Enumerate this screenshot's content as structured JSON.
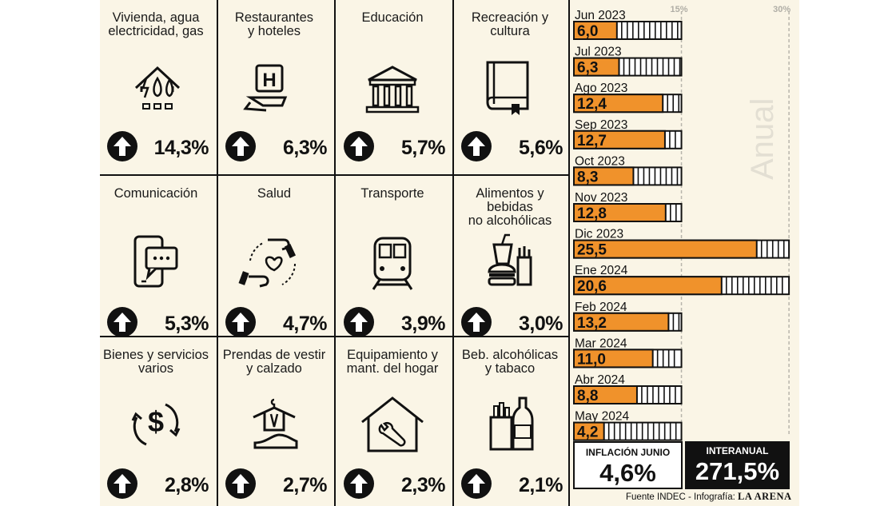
{
  "categories": [
    {
      "title": "Vivienda, agua\nelectricidad, gas",
      "value": "14,3%",
      "icon": "house-utilities-icon"
    },
    {
      "title": "Restaurantes\ny hoteles",
      "value": "6,3%",
      "icon": "hotel-icon"
    },
    {
      "title": "Educación",
      "value": "5,7%",
      "icon": "school-building-icon"
    },
    {
      "title": "Recreación y\ncultura",
      "value": "5,6%",
      "icon": "book-icon"
    },
    {
      "title": "Comunicación",
      "value": "5,3%",
      "icon": "smartphone-chat-icon"
    },
    {
      "title": "Salud",
      "value": "4,7%",
      "icon": "health-hands-heart-icon"
    },
    {
      "title": "Transporte",
      "value": "3,9%",
      "icon": "train-icon"
    },
    {
      "title": "Alimentos y bebidas\nno alcohólicas",
      "value": "3,0%",
      "icon": "food-drink-icon"
    },
    {
      "title": "Bienes y servicios\nvarios",
      "value": "2,8%",
      "icon": "dollar-exchange-icon"
    },
    {
      "title": "Prendas de vestir\ny calzado",
      "value": "2,7%",
      "icon": "clothing-shoe-icon"
    },
    {
      "title": "Equipamiento y\nmant. del hogar",
      "value": "2,3%",
      "icon": "house-wrench-icon"
    },
    {
      "title": "Beb. alcohólicas\ny tabaco",
      "value": "2,1%",
      "icon": "bottle-cigarettes-icon"
    }
  ],
  "chart_data": {
    "type": "bar",
    "orientation": "horizontal",
    "categories": [
      "Jun 2023",
      "Jul 2023",
      "Ago 2023",
      "Sep 2023",
      "Oct 2023",
      "Nov 2023",
      "Dic 2023",
      "Ene 2024",
      "Feb 2024",
      "Mar 2024",
      "Abr 2024",
      "May 2024"
    ],
    "values": [
      6.0,
      6.3,
      12.4,
      12.7,
      8.3,
      12.8,
      25.5,
      20.6,
      13.2,
      11.0,
      8.8,
      4.2
    ],
    "value_labels": [
      "6,0",
      "6,3",
      "12,4",
      "12,7",
      "8,3",
      "12,8",
      "25,5",
      "20,6",
      "13,2",
      "11,0",
      "8,8",
      "4,2"
    ],
    "ticks": [
      "15%",
      "30%"
    ],
    "xlim": [
      0,
      30
    ],
    "side_label": "Anual",
    "bar_color": "#f0922b"
  },
  "summary": {
    "june_label": "INFLACIÓN JUNIO",
    "june_value": "4,6%",
    "yoy_label": "INTERANUAL",
    "yoy_value": "271,5%"
  },
  "source": {
    "text": "Fuente INDEC - Infografía: ",
    "brand": "LA ARENA"
  }
}
